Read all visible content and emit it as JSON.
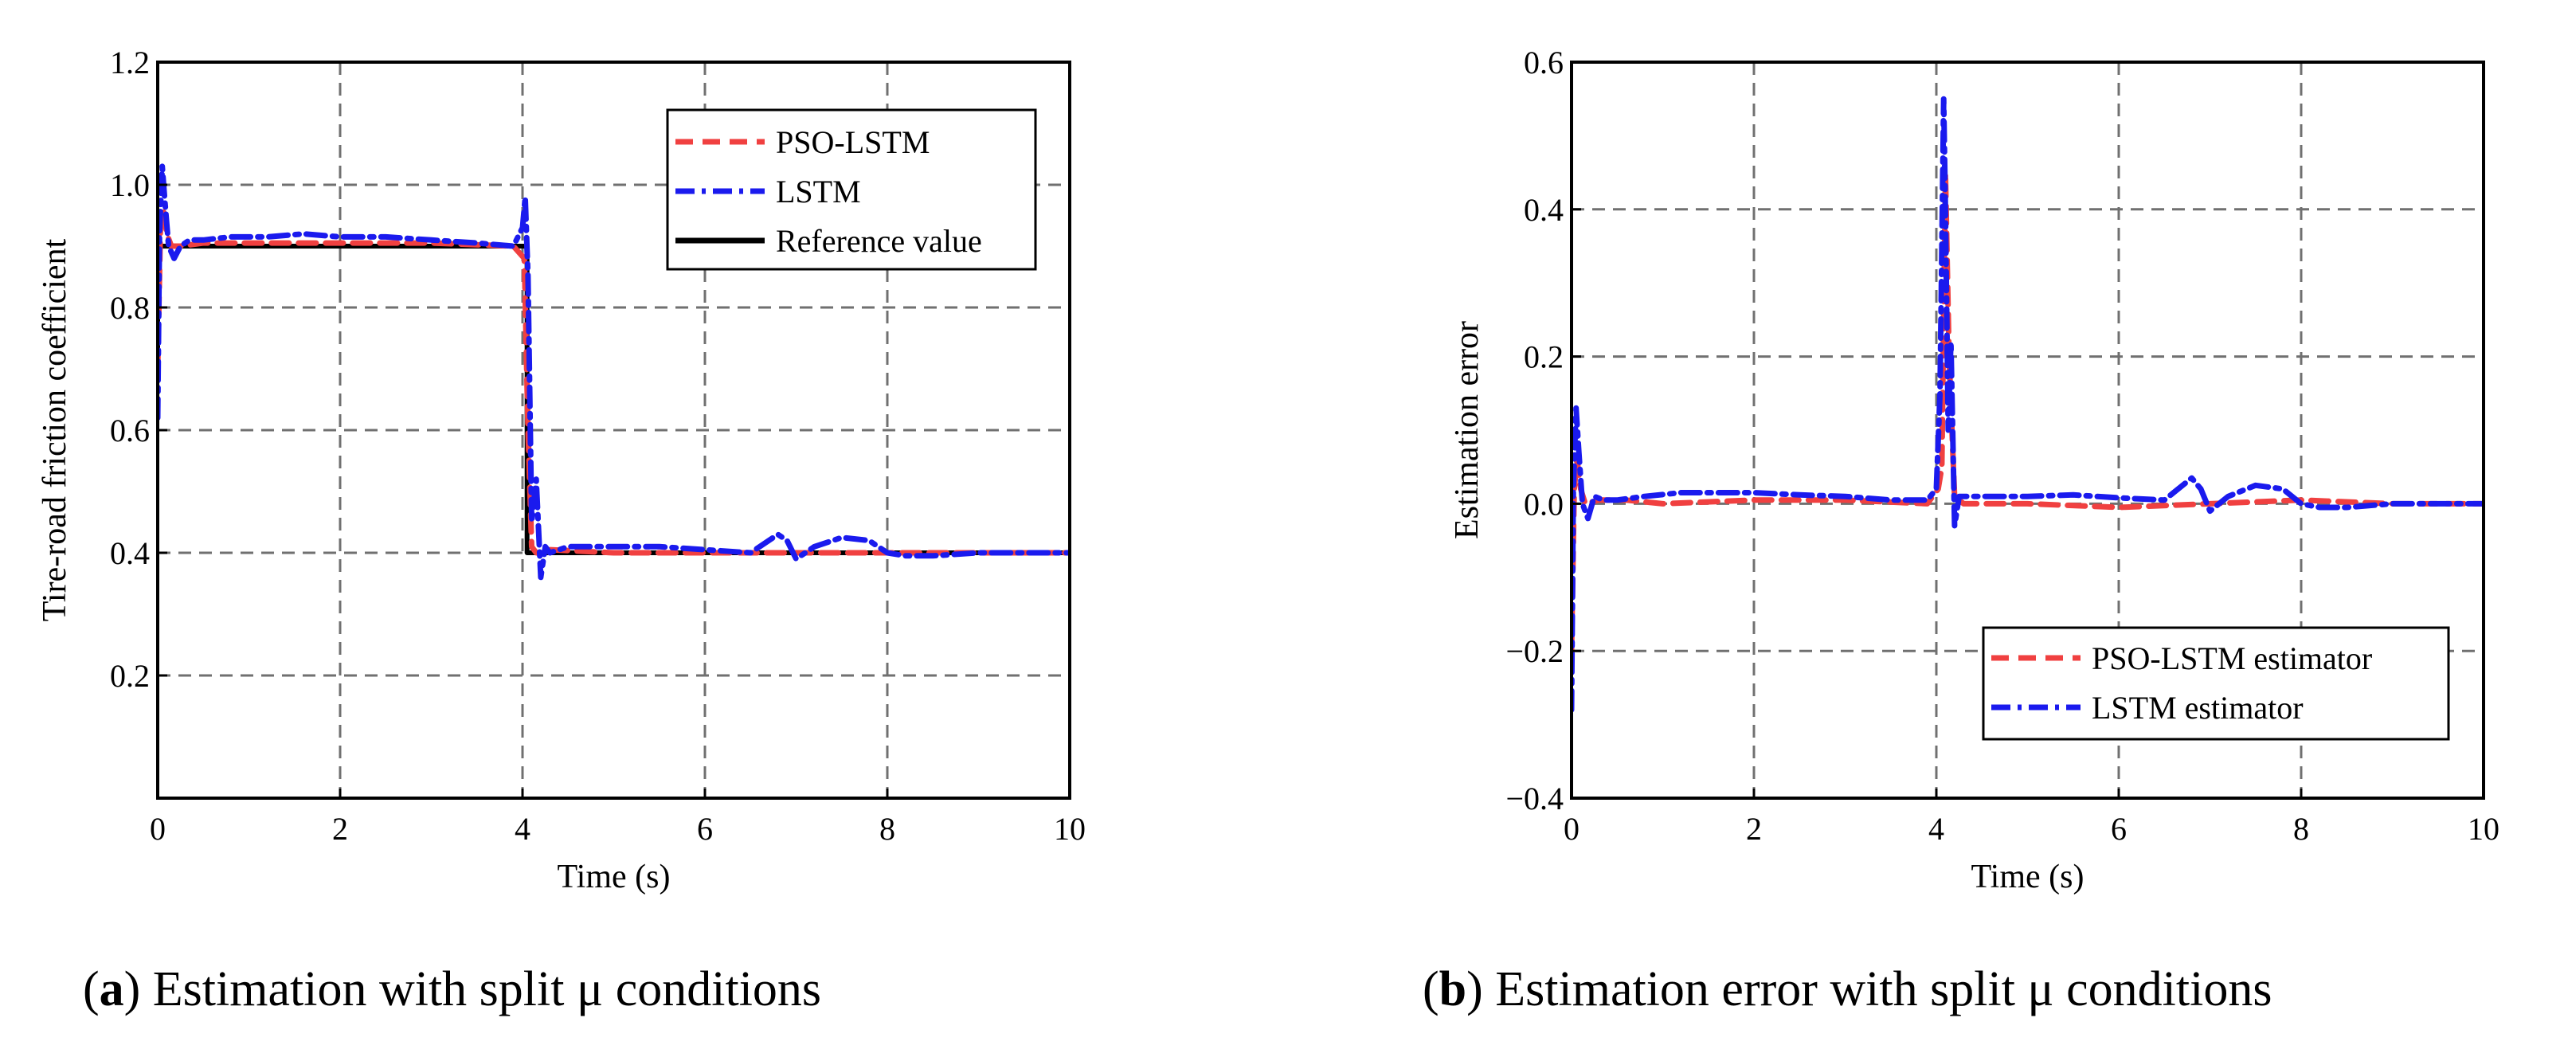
{
  "chart_data": [
    {
      "type": "line",
      "caption_letter": "a",
      "caption_text": "Estimation with split μ conditions",
      "xlabel": "Time (s)",
      "ylabel": "Tire-road friction coefficient",
      "xlim": [
        0,
        10
      ],
      "ylim": [
        0,
        1.2
      ],
      "xticks": [
        "0",
        "2",
        "4",
        "6",
        "8",
        "10"
      ],
      "yticks": [
        "0.2",
        "0.4",
        "0.6",
        "0.8",
        "1.0",
        "1.2"
      ],
      "grid": true,
      "legend_position": "top-right",
      "series": [
        {
          "name": "PSO-LSTM",
          "color": "#f04040",
          "style": "dashed",
          "x": [
            0,
            0.03,
            0.06,
            0.1,
            0.15,
            0.25,
            0.5,
            1.0,
            2.0,
            3.0,
            3.9,
            4.02,
            4.06,
            4.1,
            4.15,
            4.2,
            4.3,
            5.0,
            6.0,
            7.0,
            8.0,
            9.0,
            10.0
          ],
          "y": [
            0.7,
            0.93,
            0.96,
            0.92,
            0.9,
            0.9,
            0.905,
            0.905,
            0.905,
            0.905,
            0.9,
            0.88,
            0.6,
            0.41,
            0.4,
            0.4,
            0.405,
            0.4,
            0.4,
            0.4,
            0.4,
            0.4,
            0.4
          ]
        },
        {
          "name": "LSTM",
          "color": "#1a1aee",
          "style": "dashdot",
          "x": [
            0,
            0.02,
            0.05,
            0.08,
            0.12,
            0.18,
            0.25,
            0.35,
            0.5,
            0.8,
            1.2,
            1.6,
            2.0,
            2.5,
            3.0,
            3.5,
            3.9,
            4.0,
            4.03,
            4.06,
            4.1,
            4.15,
            4.2,
            4.25,
            4.3,
            4.5,
            5.0,
            5.5,
            6.0,
            6.5,
            6.8,
            6.9,
            7.0,
            7.2,
            7.5,
            7.8,
            8.0,
            8.2,
            8.5,
            9.0,
            9.5,
            10.0
          ],
          "y": [
            0.62,
            0.92,
            1.03,
            0.97,
            0.9,
            0.88,
            0.9,
            0.91,
            0.91,
            0.915,
            0.915,
            0.92,
            0.915,
            0.915,
            0.91,
            0.905,
            0.9,
            0.93,
            0.98,
            0.85,
            0.45,
            0.52,
            0.36,
            0.41,
            0.4,
            0.41,
            0.41,
            0.41,
            0.405,
            0.4,
            0.43,
            0.42,
            0.39,
            0.41,
            0.425,
            0.42,
            0.4,
            0.395,
            0.395,
            0.4,
            0.4,
            0.4
          ]
        },
        {
          "name": "Reference value",
          "color": "#000000",
          "style": "solid",
          "x": [
            0,
            0,
            4.05,
            4.05,
            10
          ],
          "y": [
            0.7,
            0.9,
            0.9,
            0.4,
            0.4
          ]
        }
      ]
    },
    {
      "type": "line",
      "caption_letter": "b",
      "caption_text": "Estimation error with split μ conditions",
      "xlabel": "Time (s)",
      "ylabel": "Estimation error",
      "xlim": [
        0,
        10
      ],
      "ylim": [
        -0.4,
        0.6
      ],
      "xticks": [
        "0",
        "2",
        "4",
        "6",
        "8",
        "10"
      ],
      "yticks": [
        "−0.4",
        "−0.2",
        "0.0",
        "0.2",
        "0.4",
        "0.6"
      ],
      "grid": true,
      "legend_position": "bottom-right",
      "series": [
        {
          "name": "PSO-LSTM estimator",
          "color": "#f04040",
          "style": "dashed",
          "x": [
            0,
            0.03,
            0.06,
            0.1,
            0.15,
            0.3,
            0.6,
            1.0,
            2.0,
            3.0,
            3.9,
            4.02,
            4.06,
            4.1,
            4.14,
            4.2,
            4.3,
            5.0,
            6.0,
            7.0,
            8.0,
            9.0,
            10.0
          ],
          "y": [
            -0.2,
            0.02,
            0.06,
            0.02,
            0.0,
            0.005,
            0.005,
            0.0,
            0.005,
            0.005,
            0.0,
            0.02,
            0.05,
            0.45,
            0.2,
            0.01,
            0.0,
            0.0,
            -0.005,
            0.0,
            0.005,
            0.0,
            0.0
          ]
        },
        {
          "name": "LSTM estimator",
          "color": "#1a1aee",
          "style": "dashdot",
          "x": [
            0,
            0.02,
            0.05,
            0.08,
            0.12,
            0.18,
            0.25,
            0.35,
            0.5,
            0.8,
            1.2,
            1.6,
            2.0,
            2.5,
            3.0,
            3.5,
            3.9,
            4.0,
            4.04,
            4.08,
            4.1,
            4.13,
            4.16,
            4.2,
            4.25,
            4.3,
            4.5,
            5.0,
            5.5,
            6.0,
            6.5,
            6.8,
            6.9,
            7.0,
            7.2,
            7.5,
            7.8,
            8.0,
            8.2,
            8.5,
            9.0,
            9.5,
            10.0
          ],
          "y": [
            -0.28,
            0.02,
            0.13,
            0.07,
            0.0,
            -0.02,
            0.01,
            0.005,
            0.005,
            0.01,
            0.015,
            0.015,
            0.015,
            0.012,
            0.01,
            0.005,
            0.005,
            0.02,
            0.15,
            0.55,
            0.4,
            0.1,
            0.22,
            -0.03,
            0.01,
            0.01,
            0.01,
            0.01,
            0.012,
            0.008,
            0.005,
            0.035,
            0.02,
            -0.01,
            0.01,
            0.025,
            0.02,
            0.0,
            -0.005,
            -0.005,
            0.0,
            0.0,
            0.0
          ]
        }
      ]
    }
  ]
}
